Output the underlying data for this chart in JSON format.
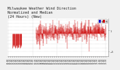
{
  "title_line1": "Milwaukee Weather Wind Direction",
  "title_line2": "Normalized and Median",
  "title_line3": "(24 Hours) (New)",
  "background_color": "#f0f0f0",
  "plot_bg_color": "#ffffff",
  "grid_color": "#aaaaaa",
  "bar_color_red": "#cc0000",
  "legend_color_blue": "#0000cc",
  "legend_color_red": "#cc0000",
  "ylim": [
    -6.5,
    4.5
  ],
  "ytick_vals": [
    -5,
    1
  ],
  "title_fontsize": 3.8,
  "tick_fontsize": 2.5,
  "xtick_fontsize": 2.0
}
